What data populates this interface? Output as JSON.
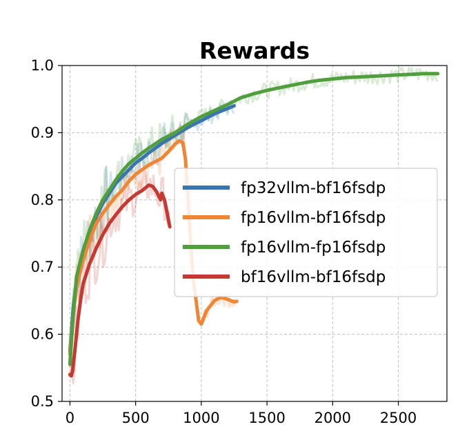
{
  "chart_data": {
    "type": "line",
    "title": "Rewards",
    "xlabel": "",
    "ylabel": "",
    "xlim": [
      -60,
      2870
    ],
    "ylim": [
      0.5,
      1.0
    ],
    "xticks": [
      0,
      500,
      1000,
      1500,
      2000,
      2500
    ],
    "yticks": [
      0.5,
      0.6,
      0.7,
      0.8,
      0.9,
      1.0
    ],
    "grid": true,
    "legend_position": "center-right",
    "series": [
      {
        "name": "fp32vllm-bf16fsdp",
        "color": "#3a75b0",
        "x": [
          0,
          25,
          50,
          100,
          150,
          200,
          250,
          300,
          350,
          400,
          450,
          500,
          550,
          600,
          650,
          700,
          750,
          800,
          850,
          900,
          950,
          1000,
          1050,
          1100,
          1150,
          1200,
          1250
        ],
        "y": [
          0.575,
          0.64,
          0.68,
          0.72,
          0.75,
          0.775,
          0.795,
          0.81,
          0.825,
          0.835,
          0.845,
          0.855,
          0.862,
          0.87,
          0.877,
          0.884,
          0.89,
          0.896,
          0.902,
          0.908,
          0.913,
          0.918,
          0.923,
          0.928,
          0.932,
          0.936,
          0.94
        ]
      },
      {
        "name": "fp16vllm-bf16fsdp",
        "color": "#ef8636",
        "x": [
          0,
          25,
          50,
          100,
          150,
          200,
          250,
          300,
          350,
          400,
          450,
          500,
          550,
          600,
          650,
          700,
          750,
          800,
          830,
          860,
          880,
          900,
          920,
          940,
          960,
          980,
          1000,
          1020,
          1040,
          1060,
          1080,
          1100,
          1150,
          1200,
          1250,
          1270
        ],
        "y": [
          0.57,
          0.63,
          0.67,
          0.71,
          0.74,
          0.765,
          0.78,
          0.793,
          0.805,
          0.815,
          0.828,
          0.838,
          0.845,
          0.852,
          0.857,
          0.862,
          0.872,
          0.883,
          0.888,
          0.885,
          0.86,
          0.8,
          0.73,
          0.68,
          0.65,
          0.62,
          0.615,
          0.625,
          0.635,
          0.64,
          0.645,
          0.65,
          0.655,
          0.652,
          0.648,
          0.649
        ]
      },
      {
        "name": "fp16vllm-fp16fsdp",
        "color": "#519e3e",
        "x": [
          0,
          25,
          50,
          100,
          150,
          200,
          250,
          300,
          350,
          400,
          450,
          500,
          550,
          600,
          700,
          800,
          900,
          1000,
          1100,
          1200,
          1300,
          1400,
          1500,
          1600,
          1700,
          1800,
          1900,
          2000,
          2100,
          2200,
          2300,
          2400,
          2500,
          2600,
          2700,
          2800
        ],
        "y": [
          0.555,
          0.63,
          0.685,
          0.725,
          0.755,
          0.78,
          0.8,
          0.815,
          0.83,
          0.843,
          0.854,
          0.862,
          0.87,
          0.877,
          0.89,
          0.9,
          0.913,
          0.924,
          0.933,
          0.942,
          0.952,
          0.958,
          0.963,
          0.967,
          0.971,
          0.975,
          0.978,
          0.98,
          0.982,
          0.983,
          0.984,
          0.985,
          0.986,
          0.987,
          0.988,
          0.988
        ]
      },
      {
        "name": "bf16vllm-bf16fsdp",
        "color": "#c53932",
        "x": [
          0,
          10,
          20,
          40,
          60,
          80,
          100,
          150,
          200,
          250,
          300,
          350,
          400,
          450,
          500,
          550,
          600,
          630,
          660,
          690,
          700,
          720,
          740,
          760
        ],
        "y": [
          0.54,
          0.538,
          0.545,
          0.58,
          0.62,
          0.65,
          0.675,
          0.705,
          0.728,
          0.748,
          0.765,
          0.778,
          0.79,
          0.8,
          0.808,
          0.814,
          0.822,
          0.82,
          0.812,
          0.8,
          0.81,
          0.8,
          0.78,
          0.76
        ]
      }
    ]
  }
}
